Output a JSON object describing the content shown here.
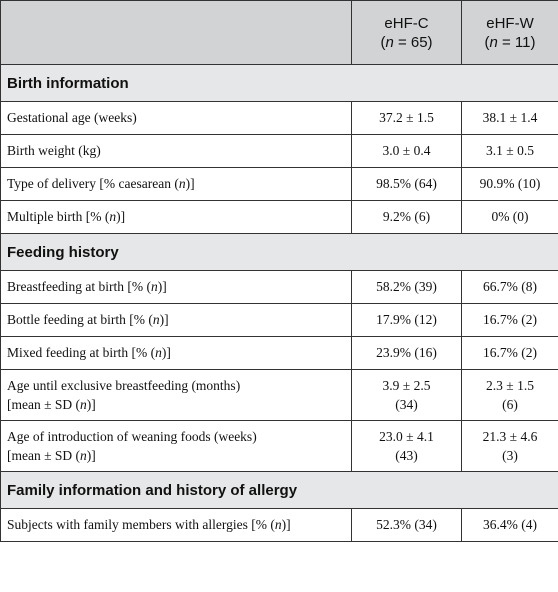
{
  "header": {
    "col1": "",
    "col2_line1": "eHF-C",
    "col2_line2": "(n = 65)",
    "col3_line1": "eHF-W",
    "col3_line2": "(n = 11)"
  },
  "sections": [
    {
      "title": "Birth information",
      "rows": [
        {
          "label": "Gestational age (weeks)",
          "v1": "37.2 ± 1.5",
          "v2": "38.1 ± 1.4"
        },
        {
          "label": "Birth weight (kg)",
          "v1": "3.0 ± 0.4",
          "v2": "3.1 ± 0.5"
        },
        {
          "label": "Type of delivery [% caesarean (n)]",
          "v1": "98.5% (64)",
          "v2": "90.9% (10)"
        },
        {
          "label": "Multiple birth [% (n)]",
          "v1": "9.2% (6)",
          "v2": "0% (0)"
        }
      ]
    },
    {
      "title": "Feeding history",
      "rows": [
        {
          "label": "Breastfeeding at birth [% (n)]",
          "v1": "58.2% (39)",
          "v2": "66.7% (8)"
        },
        {
          "label": "Bottle feeding at birth [% (n)]",
          "v1": "17.9% (12)",
          "v2": "16.7% (2)"
        },
        {
          "label": "Mixed feeding at birth [% (n)]",
          "v1": "23.9% (16)",
          "v2": "16.7% (2)"
        },
        {
          "label": "Age until exclusive breastfeeding (months)",
          "label2": "[mean ± SD (n)]",
          "v1": "3.9 ± 2.5",
          "v1b": "(34)",
          "v2": "2.3 ± 1.5",
          "v2b": "(6)"
        },
        {
          "label": "Age of introduction of weaning foods (weeks)",
          "label2": "[mean ± SD (n)]",
          "v1": "23.0 ± 4.1",
          "v1b": "(43)",
          "v2": "21.3 ± 4.6",
          "v2b": "(3)"
        }
      ]
    },
    {
      "title": "Family information and history of allergy",
      "rows": [
        {
          "label": "Subjects with family members with allergies [% (n)]",
          "v1": "52.3% (34)",
          "v2": "36.4% (4)"
        }
      ]
    }
  ]
}
